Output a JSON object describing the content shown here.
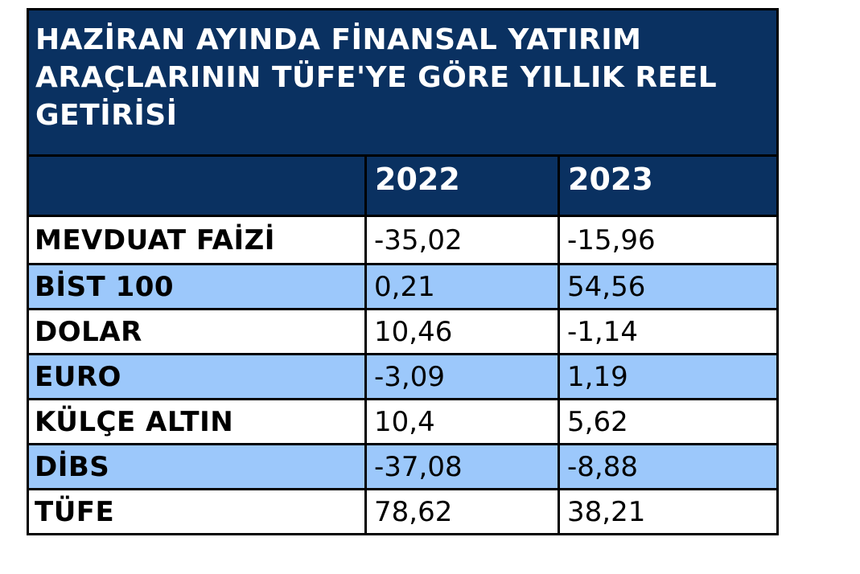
{
  "title_lines": [
    "HAZİRAN AYINDA FİNANSAL YATIRIM",
    "ARAÇLARININ TÜFE'YE GÖRE YILLIK REEL",
    "GETİRİSİ"
  ],
  "table": {
    "columns": [
      "",
      "2022",
      "2023"
    ],
    "rows": [
      {
        "label": "MEVDUAT FAİZİ",
        "y2022": "-35,02",
        "y2023": "-15,96"
      },
      {
        "label": "BİST 100",
        "y2022": "0,21",
        "y2023": "54,56"
      },
      {
        "label": "DOLAR",
        "y2022": "10,46",
        "y2023": "-1,14"
      },
      {
        "label": "EURO",
        "y2022": "-3,09",
        "y2023": "1,19"
      },
      {
        "label": "KÜLÇE ALTIN",
        "y2022": "10,4",
        "y2023": "5,62"
      },
      {
        "label": "DİBS",
        "y2022": "-37,08",
        "y2023": "-8,88"
      },
      {
        "label": "TÜFE",
        "y2022": "78,62",
        "y2023": "38,21"
      }
    ]
  },
  "chart_data": {
    "type": "table",
    "title": "HAZİRAN AYINDA FİNANSAL YATIRIM ARAÇLARININ TÜFE'YE GÖRE YILLIK REEL GETİRİSİ",
    "columns": [
      "",
      "2022",
      "2023"
    ],
    "rows": [
      [
        "MEVDUAT FAİZİ",
        -35.02,
        -15.96
      ],
      [
        "BİST 100",
        0.21,
        54.56
      ],
      [
        "DOLAR",
        10.46,
        -1.14
      ],
      [
        "EURO",
        -3.09,
        1.19
      ],
      [
        "KÜLÇE ALTIN",
        10.4,
        5.62
      ],
      [
        "DİBS",
        -37.08,
        -8.88
      ],
      [
        "TÜFE",
        78.62,
        38.21
      ]
    ],
    "number_format": "tr-TR decimal comma",
    "layout": "striped table, navy header, light blue alternating rows"
  },
  "colors": {
    "header_bg": "#0A3161",
    "stripe_bg": "#9CC8FB",
    "row_bg": "#FFFFFF",
    "grid_border": "#000000",
    "header_text": "#FFFFFF",
    "body_text": "#000000"
  }
}
